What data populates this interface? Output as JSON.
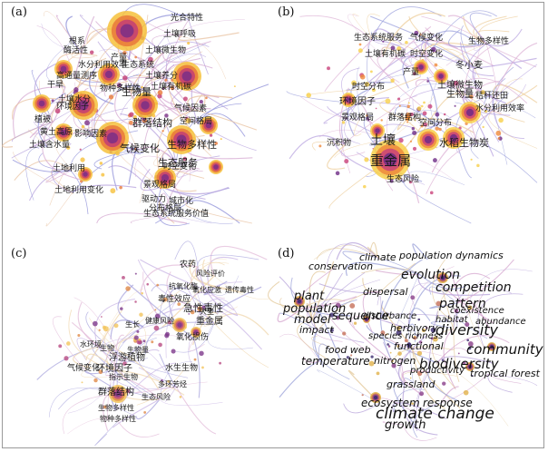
{
  "panels": [
    {
      "id": "a",
      "label": "(a)",
      "lang": "zh",
      "palette": {
        "edge": [
          "#b7a3de",
          "#8e8fd8",
          "#d6a9d2",
          "#e8c2a0"
        ],
        "node": [
          "#7a2f86",
          "#c33d74",
          "#e9793a",
          "#f6c13b"
        ]
      },
      "keywords": [
        {
          "text": "光合特性",
          "size": 9
        },
        {
          "text": "土壤呼吸",
          "size": 9
        },
        {
          "text": "根系",
          "size": 9
        },
        {
          "text": "酶活性",
          "size": 9
        },
        {
          "text": "土壤微生物",
          "size": 9
        },
        {
          "text": "产量",
          "size": 9
        },
        {
          "text": "高通量测序",
          "size": 9
        },
        {
          "text": "生态系统",
          "size": 9
        },
        {
          "text": "水分利用效率",
          "size": 9
        },
        {
          "text": "干旱",
          "size": 9
        },
        {
          "text": "土壤养分",
          "size": 9
        },
        {
          "text": "土壤有机碳",
          "size": 9
        },
        {
          "text": "物种多样性",
          "size": 9
        },
        {
          "text": "生物量",
          "size": 11
        },
        {
          "text": "土壤水分",
          "size": 9
        },
        {
          "text": "环境因子",
          "size": 9
        },
        {
          "text": "气候因素",
          "size": 9
        },
        {
          "text": "植被",
          "size": 9
        },
        {
          "text": "群落结构",
          "size": 11
        },
        {
          "text": "空间格局",
          "size": 9
        },
        {
          "text": "黄土高原",
          "size": 9
        },
        {
          "text": "影响因素",
          "size": 9
        },
        {
          "text": "生物多样性",
          "size": 11
        },
        {
          "text": "土壤含水量",
          "size": 9
        },
        {
          "text": "气候变化",
          "size": 11
        },
        {
          "text": "生态服务",
          "size": 11
        },
        {
          "text": "时空变化",
          "size": 9
        },
        {
          "text": "土地利用",
          "size": 9
        },
        {
          "text": "景观格局",
          "size": 9
        },
        {
          "text": "土地利用变化",
          "size": 9
        },
        {
          "text": "驱动力",
          "size": 9
        },
        {
          "text": "分布格局",
          "size": 9
        },
        {
          "text": "城市化",
          "size": 9
        },
        {
          "text": "生态系统服务价值",
          "size": 9
        }
      ]
    },
    {
      "id": "b",
      "label": "(b)",
      "lang": "zh",
      "palette": {
        "edge": [
          "#b9a6e0",
          "#9ba0dc",
          "#ddb3d6",
          "#eecf9e"
        ],
        "node": [
          "#6e2c86",
          "#c9427a",
          "#ef8a3c",
          "#f8d04a"
        ]
      },
      "keywords": [
        {
          "text": "生态系统服务",
          "size": 9
        },
        {
          "text": "气候变化",
          "size": 9
        },
        {
          "text": "生物多样性",
          "size": 9
        },
        {
          "text": "土壤有机碳",
          "size": 9
        },
        {
          "text": "时空变化",
          "size": 9
        },
        {
          "text": "冬小麦",
          "size": 10
        },
        {
          "text": "产量",
          "size": 9
        },
        {
          "text": "土壤微生物",
          "size": 10
        },
        {
          "text": "时空分布",
          "size": 9
        },
        {
          "text": "生物量",
          "size": 10
        },
        {
          "text": "秸秆还田",
          "size": 9
        },
        {
          "text": "环境因子",
          "size": 10
        },
        {
          "text": "水分利用效率",
          "size": 9
        },
        {
          "text": "景观格局",
          "size": 9
        },
        {
          "text": "群落结构",
          "size": 9
        },
        {
          "text": "空间分布",
          "size": 9
        },
        {
          "text": "土壤",
          "size": 14
        },
        {
          "text": "沉积物",
          "size": 9
        },
        {
          "text": "重金属",
          "size": 15
        },
        {
          "text": "水稻",
          "size": 11
        },
        {
          "text": "生物炭",
          "size": 11
        },
        {
          "text": "生态风险",
          "size": 9
        }
      ]
    },
    {
      "id": "c",
      "label": "(c)",
      "lang": "zh",
      "palette": {
        "edge": [
          "#c8b4e4",
          "#a9a5dd",
          "#e3bcd9",
          "#f0d7ad"
        ],
        "node": [
          "#7e3a8c",
          "#b94c83",
          "#e08b4a",
          "#f2c45c"
        ]
      },
      "keywords": [
        {
          "text": "农药",
          "size": 9
        },
        {
          "text": "风险评价",
          "size": 8
        },
        {
          "text": "抗氧化酶",
          "size": 8
        },
        {
          "text": "氧化应激",
          "size": 8
        },
        {
          "text": "遗传毒性",
          "size": 8
        },
        {
          "text": "毒性效应",
          "size": 9
        },
        {
          "text": "急性毒性",
          "size": 11
        },
        {
          "text": "大型",
          "size": 8
        },
        {
          "text": "健康风险",
          "size": 8
        },
        {
          "text": "重金属",
          "size": 10
        },
        {
          "text": "生长",
          "size": 8
        },
        {
          "text": "氧化损伤",
          "size": 9
        },
        {
          "text": "水环境",
          "size": 8
        },
        {
          "text": "生物",
          "size": 8
        },
        {
          "text": "浮游植物",
          "size": 10
        },
        {
          "text": "生物量",
          "size": 8
        },
        {
          "text": "气候变化",
          "size": 9
        },
        {
          "text": "环境因子",
          "size": 10
        },
        {
          "text": "指示生物",
          "size": 8
        },
        {
          "text": "水生生物",
          "size": 9
        },
        {
          "text": "多环芳烃",
          "size": 8
        },
        {
          "text": "群落结构",
          "size": 10
        },
        {
          "text": "生态风险",
          "size": 8
        },
        {
          "text": "生物多样性",
          "size": 8
        },
        {
          "text": "物种多样性",
          "size": 8
        }
      ]
    },
    {
      "id": "d",
      "label": "(d)",
      "lang": "en",
      "palette": {
        "edge": [
          "#9aa0d8",
          "#b6a2da",
          "#d6a7cf",
          "#e3c89a"
        ],
        "node": [
          "#3b2a6e",
          "#8a3f8a",
          "#c5705a",
          "#e1b24a"
        ]
      },
      "keywords": [
        {
          "text": "climate",
          "size": 11
        },
        {
          "text": "population dynamics",
          "size": 11
        },
        {
          "text": "conservation",
          "size": 11
        },
        {
          "text": "evolution",
          "size": 14
        },
        {
          "text": "dispersal",
          "size": 11
        },
        {
          "text": "competition",
          "size": 14
        },
        {
          "text": "plant",
          "size": 13
        },
        {
          "text": "pattern",
          "size": 14
        },
        {
          "text": "coexistence",
          "size": 10
        },
        {
          "text": "population",
          "size": 13
        },
        {
          "text": "model",
          "size": 13
        },
        {
          "text": "sequence",
          "size": 13
        },
        {
          "text": "diversity",
          "size": 16
        },
        {
          "text": "disturbance",
          "size": 10
        },
        {
          "text": "habitat",
          "size": 10
        },
        {
          "text": "abundance",
          "size": 10
        },
        {
          "text": "impact",
          "size": 11
        },
        {
          "text": "herbivory",
          "size": 11
        },
        {
          "text": "species richness",
          "size": 10
        },
        {
          "text": "community",
          "size": 15
        },
        {
          "text": "food web",
          "size": 11
        },
        {
          "text": "functional",
          "size": 11
        },
        {
          "text": "temperature",
          "size": 12
        },
        {
          "text": "nitrogen",
          "size": 11
        },
        {
          "text": "biodiversity",
          "size": 15
        },
        {
          "text": "productivity",
          "size": 10
        },
        {
          "text": "tropical forest",
          "size": 11
        },
        {
          "text": "grassland",
          "size": 11
        },
        {
          "text": "ecosystem",
          "size": 12
        },
        {
          "text": "response",
          "size": 12
        },
        {
          "text": "climate change",
          "size": 17
        },
        {
          "text": "growth",
          "size": 13
        }
      ]
    }
  ]
}
